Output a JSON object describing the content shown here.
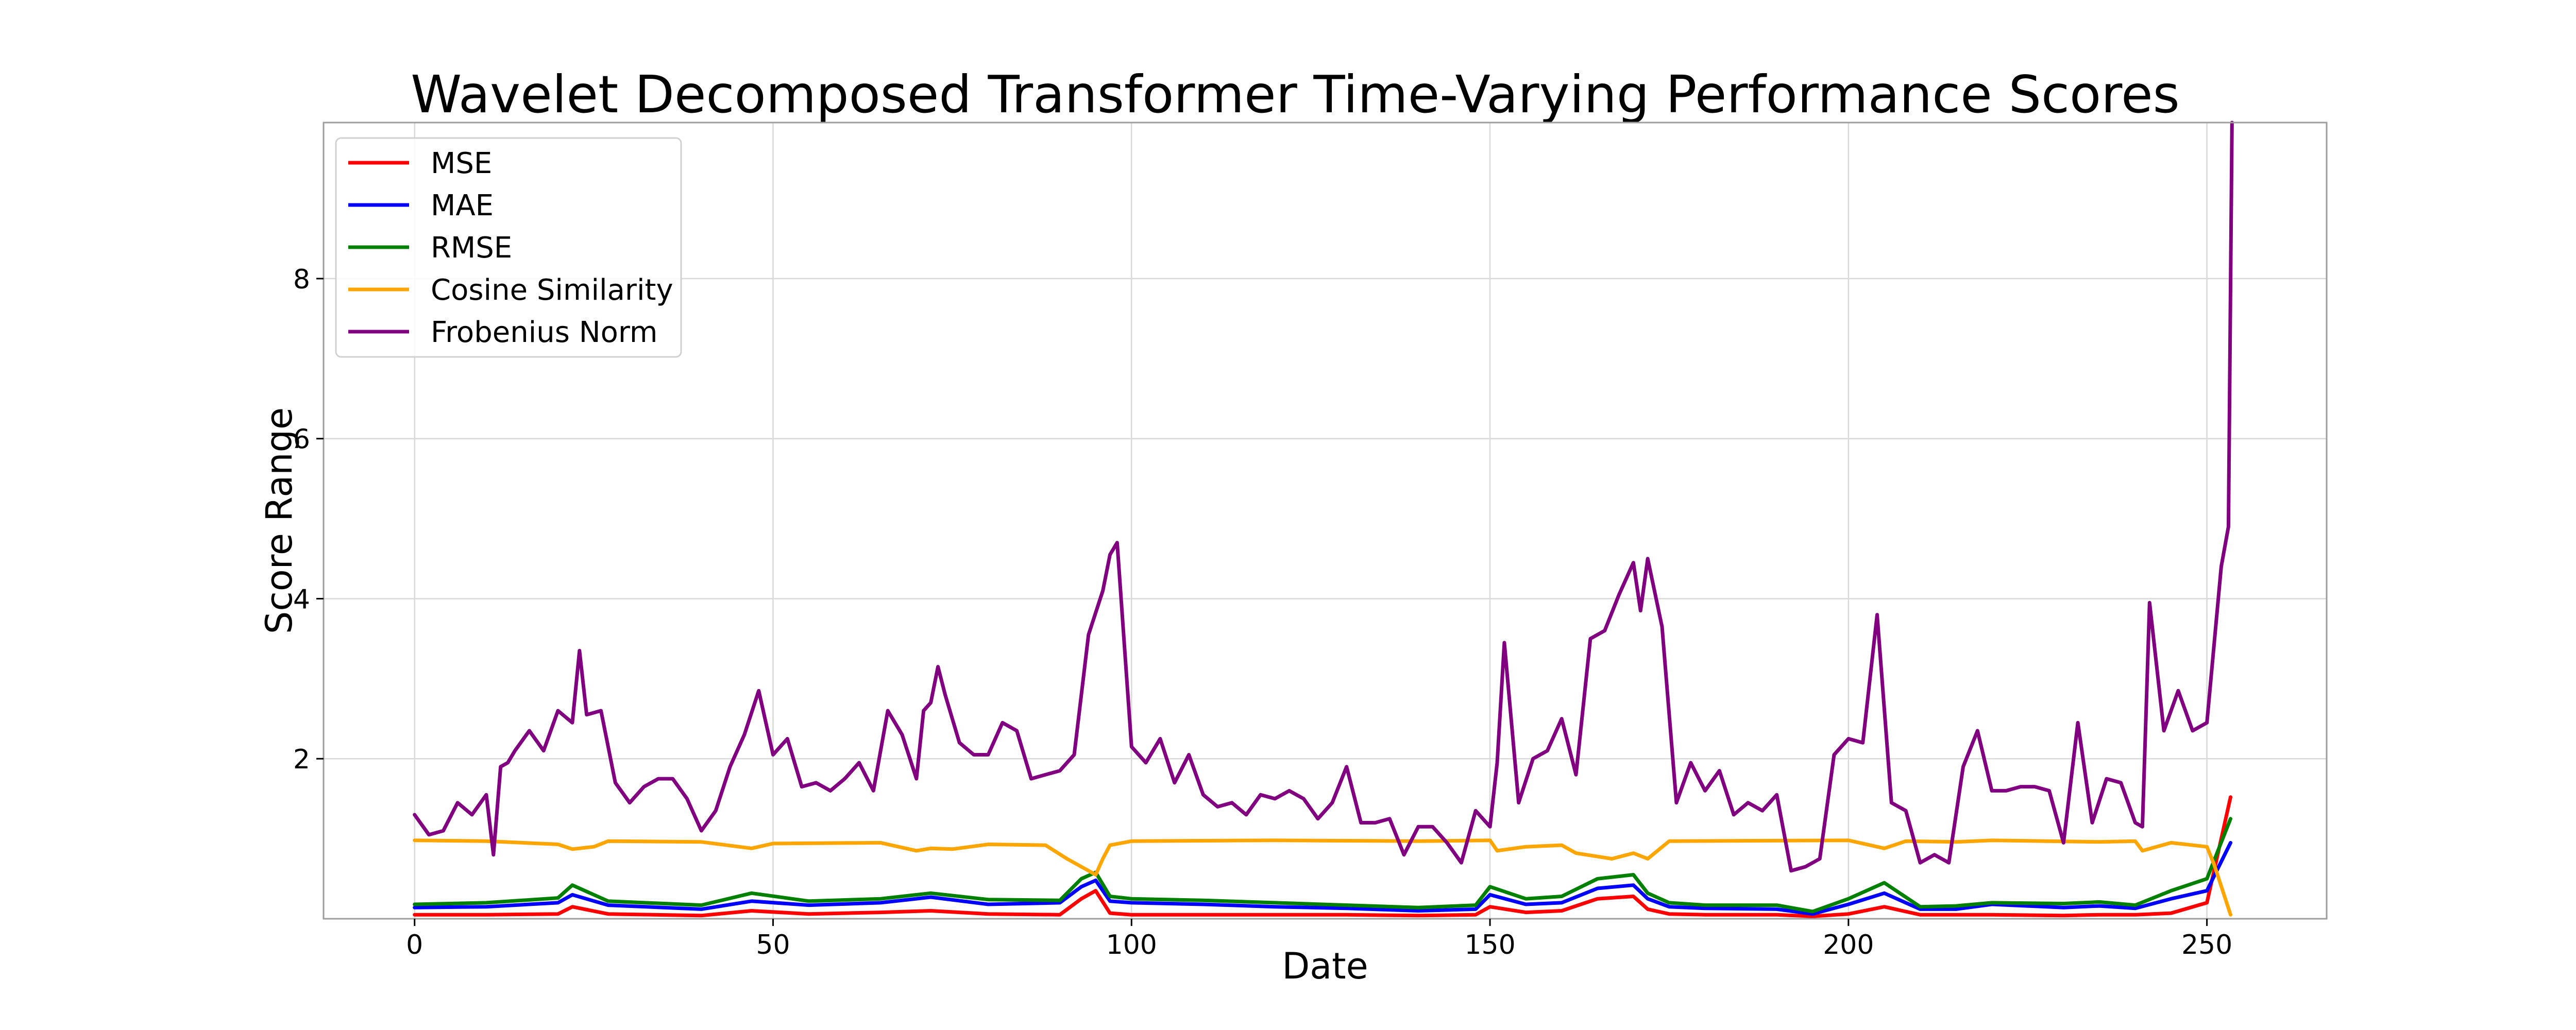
{
  "chart_data": {
    "type": "line",
    "title": "Wavelet Decomposed Transformer Time-Varying Performance Scores",
    "xlabel": "Date",
    "ylabel": "Score Range",
    "xlim": [
      -12.7,
      266.7
    ],
    "ylim": [
      0,
      9.95
    ],
    "xticks": [
      0,
      50,
      100,
      150,
      200,
      250
    ],
    "yticks": [
      2,
      4,
      6,
      8
    ],
    "grid": true,
    "legend_position": "upper-left",
    "series": [
      {
        "name": "MSE",
        "color": "#ff0000",
        "x": [
          0,
          10,
          20,
          22,
          27,
          40,
          47,
          55,
          65,
          72,
          80,
          90,
          93,
          95,
          97,
          100,
          110,
          120,
          130,
          140,
          148,
          150,
          155,
          160,
          165,
          170,
          172,
          175,
          180,
          190,
          195,
          200,
          205,
          210,
          215,
          220,
          230,
          235,
          240,
          245,
          250,
          253.3
        ],
        "y": [
          0.05,
          0.05,
          0.06,
          0.15,
          0.06,
          0.04,
          0.1,
          0.06,
          0.08,
          0.1,
          0.06,
          0.05,
          0.25,
          0.35,
          0.07,
          0.05,
          0.05,
          0.05,
          0.05,
          0.04,
          0.05,
          0.15,
          0.08,
          0.1,
          0.25,
          0.28,
          0.12,
          0.06,
          0.05,
          0.05,
          0.03,
          0.06,
          0.15,
          0.05,
          0.05,
          0.05,
          0.04,
          0.05,
          0.05,
          0.07,
          0.2,
          1.52
        ]
      },
      {
        "name": "MAE",
        "color": "#0000ff",
        "x": [
          0,
          10,
          20,
          22,
          27,
          40,
          47,
          55,
          65,
          72,
          80,
          90,
          93,
          95,
          97,
          100,
          110,
          120,
          130,
          140,
          148,
          150,
          155,
          160,
          165,
          170,
          172,
          175,
          180,
          190,
          195,
          200,
          205,
          210,
          215,
          220,
          230,
          235,
          240,
          245,
          250,
          253.3
        ],
        "y": [
          0.14,
          0.15,
          0.2,
          0.3,
          0.17,
          0.12,
          0.22,
          0.17,
          0.2,
          0.27,
          0.18,
          0.2,
          0.4,
          0.48,
          0.22,
          0.2,
          0.18,
          0.15,
          0.13,
          0.1,
          0.12,
          0.3,
          0.18,
          0.2,
          0.38,
          0.42,
          0.25,
          0.15,
          0.13,
          0.12,
          0.06,
          0.18,
          0.32,
          0.12,
          0.12,
          0.18,
          0.14,
          0.16,
          0.13,
          0.25,
          0.35,
          0.95
        ]
      },
      {
        "name": "RMSE",
        "color": "#008000",
        "x": [
          0,
          10,
          20,
          22,
          27,
          40,
          47,
          55,
          65,
          72,
          80,
          90,
          93,
          95,
          97,
          100,
          110,
          120,
          130,
          140,
          148,
          150,
          155,
          160,
          165,
          170,
          172,
          175,
          180,
          190,
          195,
          200,
          205,
          210,
          215,
          220,
          230,
          235,
          240,
          245,
          250,
          253.3
        ],
        "y": [
          0.18,
          0.2,
          0.26,
          0.42,
          0.22,
          0.17,
          0.32,
          0.22,
          0.25,
          0.32,
          0.24,
          0.23,
          0.5,
          0.58,
          0.28,
          0.25,
          0.23,
          0.2,
          0.17,
          0.14,
          0.17,
          0.4,
          0.25,
          0.28,
          0.5,
          0.55,
          0.32,
          0.2,
          0.17,
          0.17,
          0.09,
          0.25,
          0.45,
          0.15,
          0.16,
          0.2,
          0.19,
          0.21,
          0.17,
          0.35,
          0.5,
          1.25
        ]
      },
      {
        "name": "Cosine Similarity",
        "color": "#ffa500",
        "x": [
          0,
          10,
          20,
          22,
          25,
          27,
          40,
          47,
          50,
          65,
          70,
          72,
          75,
          80,
          88,
          91,
          95,
          96,
          97,
          100,
          120,
          140,
          150,
          151,
          155,
          160,
          162,
          167,
          170,
          172,
          175,
          200,
          205,
          208,
          215,
          220,
          235,
          240,
          241,
          245,
          250,
          251,
          253.3
        ],
        "y": [
          0.98,
          0.97,
          0.93,
          0.87,
          0.9,
          0.97,
          0.96,
          0.88,
          0.94,
          0.95,
          0.85,
          0.88,
          0.87,
          0.93,
          0.92,
          0.75,
          0.55,
          0.75,
          0.92,
          0.97,
          0.98,
          0.97,
          0.98,
          0.85,
          0.9,
          0.92,
          0.82,
          0.75,
          0.82,
          0.75,
          0.97,
          0.98,
          0.88,
          0.97,
          0.96,
          0.98,
          0.96,
          0.97,
          0.85,
          0.95,
          0.9,
          0.68,
          0.05
        ]
      },
      {
        "name": "Frobenius Norm",
        "color": "#800080",
        "x": [
          0,
          2,
          4,
          6,
          8,
          10,
          11,
          12,
          13,
          14,
          16,
          18,
          20,
          22,
          23,
          24,
          26,
          28,
          30,
          32,
          34,
          36,
          38,
          40,
          42,
          44,
          46,
          48,
          50,
          52,
          54,
          56,
          58,
          60,
          62,
          64,
          66,
          68,
          70,
          71,
          72,
          73,
          74,
          76,
          78,
          80,
          82,
          84,
          86,
          88,
          90,
          92,
          94,
          96,
          97,
          98,
          100,
          102,
          104,
          106,
          108,
          110,
          112,
          114,
          116,
          118,
          120,
          122,
          124,
          126,
          128,
          130,
          132,
          134,
          136,
          138,
          140,
          142,
          144,
          146,
          148,
          150,
          151,
          152,
          154,
          156,
          158,
          160,
          162,
          164,
          166,
          168,
          170,
          171,
          172,
          174,
          176,
          178,
          180,
          182,
          184,
          186,
          188,
          190,
          192,
          194,
          196,
          198,
          200,
          202,
          204,
          206,
          208,
          210,
          212,
          214,
          216,
          218,
          220,
          222,
          224,
          226,
          228,
          230,
          232,
          234,
          236,
          238,
          240,
          241,
          242,
          244,
          246,
          248,
          250,
          252,
          253,
          253.5
        ],
        "y": [
          1.3,
          1.05,
          1.1,
          1.45,
          1.3,
          1.55,
          0.8,
          1.9,
          1.95,
          2.1,
          2.35,
          2.1,
          2.6,
          2.45,
          3.35,
          2.55,
          2.6,
          1.7,
          1.45,
          1.65,
          1.75,
          1.75,
          1.5,
          1.1,
          1.35,
          1.9,
          2.3,
          2.85,
          2.05,
          2.25,
          1.65,
          1.7,
          1.6,
          1.75,
          1.95,
          1.6,
          2.6,
          2.3,
          1.75,
          2.6,
          2.7,
          3.15,
          2.8,
          2.2,
          2.05,
          2.05,
          2.45,
          2.35,
          1.75,
          1.8,
          1.85,
          2.05,
          3.55,
          4.1,
          4.55,
          4.7,
          2.15,
          1.95,
          2.25,
          1.7,
          2.05,
          1.55,
          1.4,
          1.45,
          1.3,
          1.55,
          1.5,
          1.6,
          1.5,
          1.25,
          1.45,
          1.9,
          1.2,
          1.2,
          1.25,
          0.8,
          1.15,
          1.15,
          0.95,
          0.7,
          1.35,
          1.15,
          1.95,
          3.45,
          1.45,
          2.0,
          2.1,
          2.5,
          1.8,
          3.5,
          3.6,
          4.05,
          4.45,
          3.85,
          4.5,
          3.65,
          1.45,
          1.95,
          1.6,
          1.85,
          1.3,
          1.45,
          1.35,
          1.55,
          0.6,
          0.65,
          0.75,
          2.05,
          2.25,
          2.2,
          3.8,
          1.45,
          1.35,
          0.7,
          0.8,
          0.7,
          1.9,
          2.35,
          1.6,
          1.6,
          1.65,
          1.65,
          1.6,
          0.95,
          2.45,
          1.2,
          1.75,
          1.7,
          1.2,
          1.15,
          3.95,
          2.35,
          2.85,
          2.35,
          2.45,
          4.4,
          4.9,
          9.95
        ]
      }
    ]
  }
}
